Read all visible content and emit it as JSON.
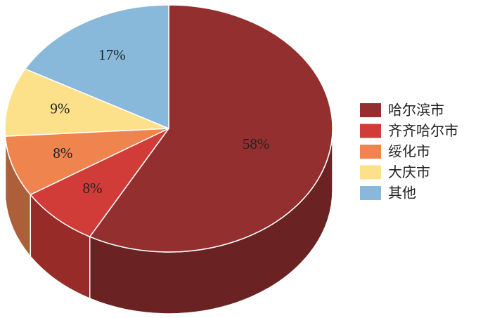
{
  "chart_data": {
    "type": "pie3d",
    "categories": [
      "哈尔滨市",
      "齐齐哈尔市",
      "绥化市",
      "大庆市",
      "其他"
    ],
    "values": [
      58,
      8,
      8,
      9,
      17
    ],
    "value_labels": [
      "58%",
      "8%",
      "8%",
      "9%",
      "17%"
    ],
    "colors": [
      "#93302f",
      "#d23c38",
      "#f0844f",
      "#fde08a",
      "#88b9da"
    ],
    "legend": "right"
  }
}
